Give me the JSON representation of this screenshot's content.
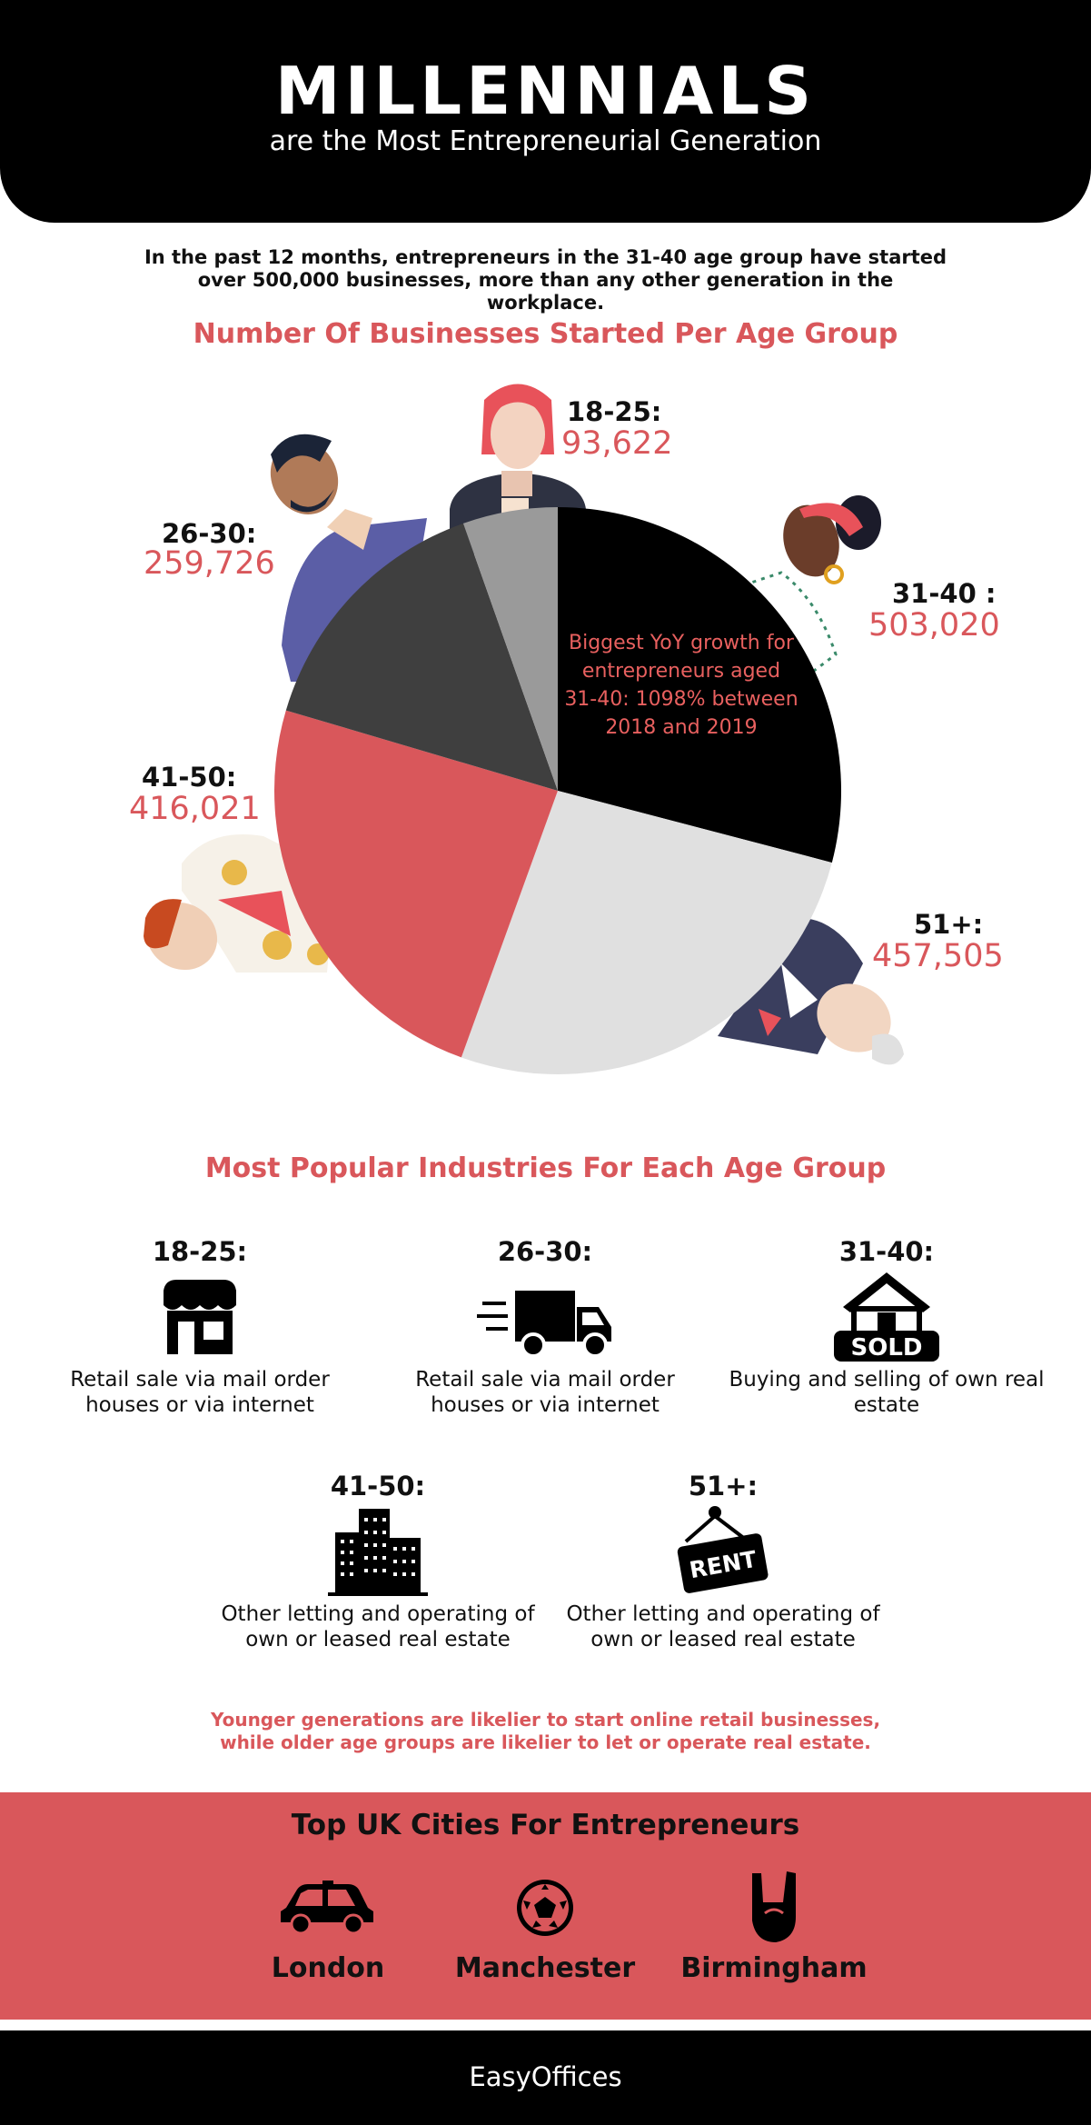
{
  "header": {
    "title": "MILLENNIALS",
    "subtitle": "are the Most Entrepreneurial Generation"
  },
  "intro": "In the past 12 months, entrepreneurs in the 31-40 age group have  started over 500,000 businesses, more than any other generation in the workplace.",
  "chart_data": {
    "type": "pie",
    "title": "Number Of Businesses Started Per Age Group",
    "categories": [
      "18-25:",
      "26-30:",
      "31-40 :",
      "41-50:",
      "51+:"
    ],
    "values": [
      93622,
      259726,
      503020,
      416021,
      457505
    ],
    "value_labels": [
      "93,622",
      "259,726",
      "503,020",
      "416,021",
      "457,505"
    ],
    "colors": [
      "#9a9a9a",
      "#3f3f3f",
      "#000000",
      "#d9575b",
      "#e0e0e0"
    ],
    "start_angle_deg": 0,
    "direction": "clockwise",
    "draw_order": [
      2,
      4,
      3,
      1,
      0
    ],
    "annotation": "Biggest YoY growth for entrepreneurs aged 31-40: 1098% between 2018 and 2019"
  },
  "industries": {
    "title": "Most Popular Industries For Each Age Group",
    "items": [
      {
        "age": "18-25:",
        "icon": "shop-icon",
        "desc": "Retail sale via mail order houses or via internet"
      },
      {
        "age": "26-30:",
        "icon": "delivery-truck-icon",
        "desc": "Retail sale via mail order houses or via internet"
      },
      {
        "age": "31-40:",
        "icon": "house-sold-icon",
        "desc": "Buying and selling of own real estate",
        "sign_text": "SOLD"
      },
      {
        "age": "41-50:",
        "icon": "office-buildings-icon",
        "desc": "Other letting and operating of own or leased real estate"
      },
      {
        "age": "51+:",
        "icon": "rent-sign-icon",
        "desc": "Other letting and operating of own or leased real estate",
        "sign_text": "RENT"
      }
    ]
  },
  "takeaway": "Younger generations are likelier to start online retail businesses, while older age groups are likelier to let or operate real estate.",
  "cities": {
    "title": "Top UK Cities For Entrepreneurs",
    "items": [
      {
        "name": "London",
        "icon": "taxi-cab-icon"
      },
      {
        "name": "Manchester",
        "icon": "football-icon"
      },
      {
        "name": "Birmingham",
        "icon": "rock-hand-icon"
      }
    ]
  },
  "footer": {
    "brand": "EasyOffices"
  },
  "colors": {
    "accent": "#d9575b",
    "dark": "#000000"
  }
}
